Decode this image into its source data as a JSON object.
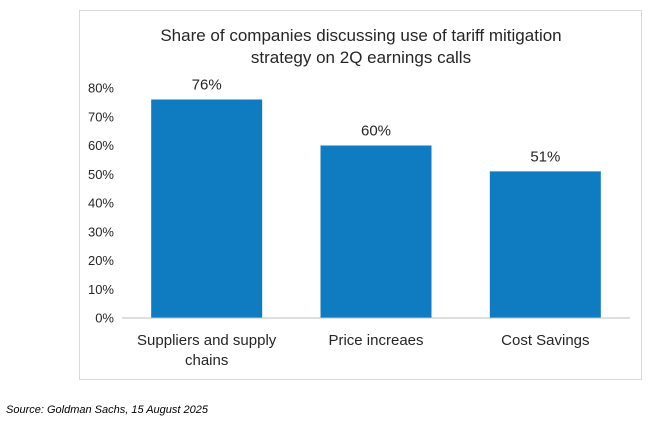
{
  "chart_data": {
    "type": "bar",
    "title": "Share of companies discussing use of tariff mitigation strategy on 2Q earnings calls",
    "title_lines": [
      "Share of companies discussing use of tariff mitigation",
      "strategy on 2Q earnings calls"
    ],
    "categories": [
      "Suppliers and supply chains",
      "Price increaes",
      "Cost Savings"
    ],
    "category_lines": [
      [
        "Suppliers and supply",
        "chains"
      ],
      [
        "Price increaes"
      ],
      [
        "Cost Savings"
      ]
    ],
    "values": [
      76,
      60,
      51
    ],
    "value_labels": [
      "76%",
      "60%",
      "51%"
    ],
    "ylim": [
      0,
      80
    ],
    "yticks": [
      0,
      10,
      20,
      30,
      40,
      50,
      60,
      70,
      80
    ],
    "ytick_labels": [
      "0%",
      "10%",
      "20%",
      "30%",
      "40%",
      "50%",
      "60%",
      "70%",
      "80%"
    ],
    "xlabel": "",
    "ylabel": "",
    "grid": false,
    "legend": "none",
    "bar_color": "#0f7cc1",
    "axis_color": "#bfbfbf",
    "text_color": "#262626"
  },
  "source": "Source:  Goldman Sachs, 15 August 2025"
}
